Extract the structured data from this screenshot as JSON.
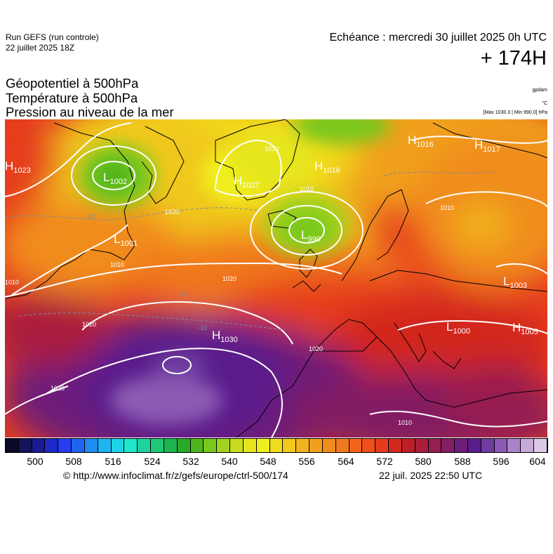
{
  "header": {
    "run_title": "Run GEFS (run controle)",
    "run_date": "22 juillet 2025 18Z",
    "valid_time": "Echéance : mercredi 30 juillet 2025 0h UTC",
    "lead_time": "+ 174H"
  },
  "parameters": [
    "Géopotentiel à 500hPa",
    "Température à 500hPa",
    "Pression au niveau de la mer"
  ],
  "units": {
    "geopotential": "gpdam",
    "temperature": "°C",
    "pressure_range": "[Max 1030.3 | Min 990.0] hPa"
  },
  "map": {
    "pressure_centers": [
      {
        "type": "H",
        "value": "1023"
      },
      {
        "type": "L",
        "value": "1002"
      },
      {
        "type": "H",
        "value": "1027"
      },
      {
        "type": "H",
        "value": "1016"
      },
      {
        "type": "H",
        "value": "1016"
      },
      {
        "type": "H",
        "value": "1017"
      },
      {
        "type": "L",
        "value": "990"
      },
      {
        "type": "L",
        "value": "1001"
      },
      {
        "type": "L",
        "value": "1003"
      },
      {
        "type": "L",
        "value": "1000"
      },
      {
        "type": "H",
        "value": "1005"
      },
      {
        "type": "H",
        "value": "1030"
      }
    ],
    "isobar_labels": [
      "1010",
      "1020",
      "1020",
      "1020",
      "1020",
      "1010",
      "1010",
      "1010",
      "1010",
      "1010",
      "1020"
    ],
    "temperature_labels": [
      "-10",
      "-10",
      "-20"
    ]
  },
  "color_scale": {
    "colors": [
      "#0a0a28",
      "#14145a",
      "#1a1a96",
      "#1e28c8",
      "#283cf0",
      "#1e64f0",
      "#1e8cf0",
      "#1eb4f0",
      "#1ed2e6",
      "#1ee6c8",
      "#1ed2a0",
      "#1ec878",
      "#1eb450",
      "#28aa28",
      "#50b41e",
      "#78c81e",
      "#a0d21e",
      "#c8dc1e",
      "#e6e61e",
      "#f0f01e",
      "#f0dc1e",
      "#f0c81e",
      "#f0b41e",
      "#f0a01e",
      "#f08c1e",
      "#f0781e",
      "#f0641e",
      "#f0501e",
      "#e63c1e",
      "#d2281e",
      "#be1e28",
      "#aa1e3c",
      "#961e50",
      "#821e64",
      "#6e1e78",
      "#5a1e8c",
      "#6e3ca0",
      "#8c5ab4",
      "#aa82c8",
      "#c8aad8",
      "#dcc8e6"
    ],
    "labels": [
      "500",
      "508",
      "516",
      "524",
      "532",
      "540",
      "548",
      "556",
      "564",
      "572",
      "580",
      "588",
      "596",
      "604"
    ]
  },
  "footer": {
    "credit": "© http://www.infoclimat.fr/z/gefs/europe/ctrl-500/174",
    "generated": "22 juil. 2025 22:50 UTC"
  }
}
